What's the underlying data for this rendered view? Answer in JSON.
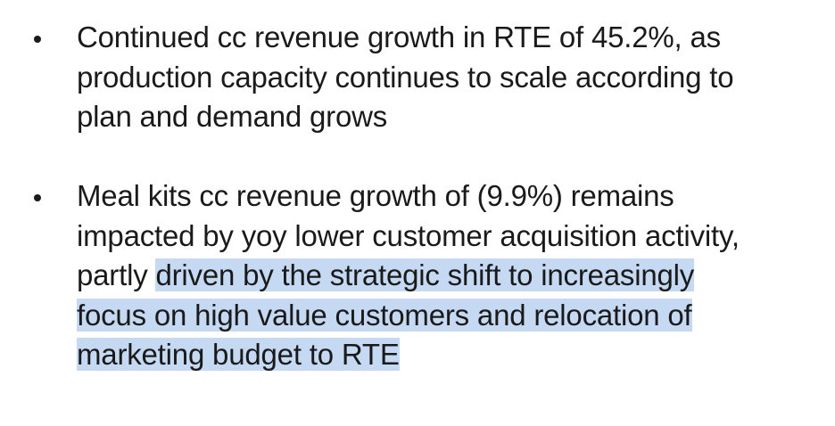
{
  "bullets": [
    {
      "lines": [
        "Continued cc revenue growth in RTE of 45.2%, as",
        "production capacity continues to scale according to",
        "plan and demand grows"
      ]
    },
    {
      "lines": [
        "Meal kits cc revenue growth of (9.9%) remains",
        "impacted by yoy lower customer acquisition activity,"
      ],
      "line3_plain": "partly ",
      "line3_highlight": "driven by the strategic shift to increasingly",
      "highlight_lines": [
        "focus on high value customers and relocation of",
        "marketing budget to RTE"
      ]
    }
  ],
  "colors": {
    "text": "#1a1a1a",
    "selection_highlight": "#c5d9f3",
    "background": "#ffffff"
  }
}
